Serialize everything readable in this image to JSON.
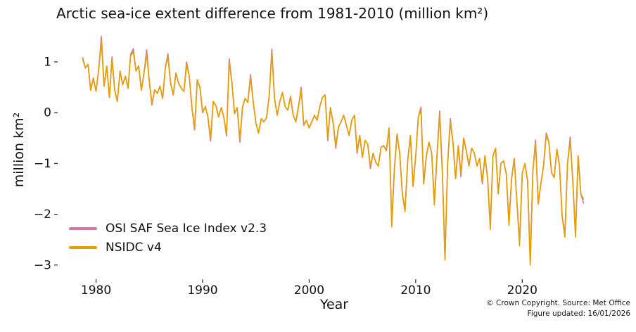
{
  "footer": {
    "line1": "© Crown Copyright. Source: Met Office",
    "line2": "Figure updated: 16/01/2026"
  },
  "chart_data": {
    "type": "line",
    "title": "Arctic sea-ice extent difference from 1981-2010 (million km²)",
    "xlabel": "Year",
    "ylabel": "million km²",
    "xlim": [
      1976.4,
      2028.3
    ],
    "ylim": [
      -3.28,
      1.72
    ],
    "xticks": [
      1980,
      1990,
      2000,
      2010,
      2020
    ],
    "yticks": [
      1,
      0,
      -1,
      -2,
      -3
    ],
    "grid": false,
    "legend_position": "lower-left",
    "x_start": 1978.75,
    "x_step": 0.25,
    "series": [
      {
        "name": "OSI SAF Sea Ice Index v2.3",
        "color": "#CC79A7",
        "values": [
          1.08,
          0.88,
          0.95,
          0.44,
          0.68,
          0.42,
          0.85,
          1.5,
          0.52,
          0.92,
          0.3,
          1.1,
          0.45,
          0.22,
          0.82,
          0.55,
          0.72,
          0.48,
          1.15,
          1.26,
          0.82,
          0.92,
          0.44,
          0.78,
          1.24,
          0.62,
          0.15,
          0.45,
          0.38,
          0.52,
          0.28,
          0.88,
          1.16,
          0.58,
          0.35,
          0.78,
          0.58,
          0.48,
          0.42,
          1.0,
          0.72,
          0.1,
          -0.34,
          0.65,
          0.5,
          0.0,
          0.12,
          -0.08,
          -0.56,
          0.22,
          0.14,
          -0.08,
          0.1,
          -0.1,
          -0.46,
          1.06,
          0.6,
          -0.02,
          0.1,
          -0.58,
          0.12,
          0.28,
          0.2,
          0.75,
          0.22,
          -0.2,
          -0.4,
          -0.12,
          -0.18,
          -0.1,
          0.32,
          1.25,
          0.28,
          -0.05,
          0.22,
          0.4,
          0.12,
          0.05,
          0.32,
          -0.05,
          -0.18,
          0.12,
          0.5,
          -0.25,
          -0.15,
          -0.3,
          -0.18,
          -0.05,
          -0.15,
          0.12,
          0.3,
          0.35,
          -0.55,
          0.1,
          -0.2,
          -0.7,
          -0.28,
          -0.18,
          -0.05,
          -0.25,
          -0.45,
          -0.15,
          -0.05,
          -0.8,
          -0.45,
          -0.88,
          -0.55,
          -0.62,
          -1.1,
          -0.8,
          -0.98,
          -1.05,
          -0.68,
          -0.65,
          -0.75,
          -0.3,
          -2.18,
          -1.1,
          -0.42,
          -0.8,
          -1.6,
          -1.9,
          -0.95,
          -0.45,
          -1.45,
          -0.85,
          -0.08,
          0.11,
          -1.4,
          -0.85,
          -0.58,
          -0.8,
          -1.76,
          -0.85,
          0.03,
          -1.15,
          -2.84,
          -1.0,
          -0.12,
          -0.6,
          -1.3,
          -0.65,
          -1.26,
          -0.5,
          -0.75,
          -1.05,
          -0.7,
          -0.8,
          -1.05,
          -0.9,
          -1.4,
          -0.85,
          -1.3,
          -2.22,
          -0.85,
          -0.7,
          -1.6,
          -1.0,
          -0.95,
          -1.2,
          -2.16,
          -1.3,
          -0.9,
          -1.75,
          -2.55,
          -1.2,
          -1.0,
          -1.35,
          -2.94,
          -1.15,
          -0.54,
          -1.8,
          -1.4,
          -1.05,
          -0.4,
          -0.58,
          -1.18,
          -1.28,
          -0.72,
          -1.05,
          -2.05,
          -2.38,
          -1.0,
          -0.48,
          -1.35,
          -2.38,
          -0.85,
          -1.6,
          -1.78
        ]
      },
      {
        "name": "NSIDC v4",
        "color": "#E69F00",
        "values": [
          1.05,
          0.88,
          0.95,
          0.44,
          0.68,
          0.42,
          0.85,
          1.4,
          0.52,
          0.92,
          0.3,
          1.05,
          0.45,
          0.22,
          0.82,
          0.55,
          0.72,
          0.48,
          1.12,
          1.2,
          0.82,
          0.92,
          0.44,
          0.78,
          1.15,
          0.62,
          0.18,
          0.45,
          0.38,
          0.52,
          0.28,
          0.88,
          1.1,
          0.58,
          0.35,
          0.78,
          0.58,
          0.48,
          0.42,
          0.94,
          0.72,
          0.1,
          -0.3,
          0.65,
          0.5,
          0.0,
          0.12,
          -0.08,
          -0.5,
          0.22,
          0.14,
          -0.08,
          0.1,
          -0.1,
          -0.42,
          1.0,
          0.6,
          -0.02,
          0.1,
          -0.52,
          0.12,
          0.28,
          0.2,
          0.7,
          0.22,
          -0.2,
          -0.4,
          -0.12,
          -0.18,
          -0.1,
          0.32,
          1.18,
          0.28,
          -0.05,
          0.22,
          0.4,
          0.12,
          0.05,
          0.32,
          -0.05,
          -0.18,
          0.12,
          0.45,
          -0.25,
          -0.15,
          -0.3,
          -0.18,
          -0.05,
          -0.15,
          0.12,
          0.3,
          0.35,
          -0.5,
          0.1,
          -0.2,
          -0.65,
          -0.28,
          -0.18,
          -0.05,
          -0.25,
          -0.45,
          -0.15,
          -0.05,
          -0.75,
          -0.45,
          -0.88,
          -0.55,
          -0.62,
          -1.05,
          -0.8,
          -0.98,
          -1.05,
          -0.68,
          -0.65,
          -0.75,
          -0.3,
          -2.25,
          -1.1,
          -0.42,
          -0.8,
          -1.6,
          -1.95,
          -0.95,
          -0.45,
          -1.45,
          -0.85,
          -0.08,
          0.05,
          -1.4,
          -0.85,
          -0.58,
          -0.8,
          -1.82,
          -0.85,
          -0.05,
          -1.15,
          -2.9,
          -1.0,
          -0.18,
          -0.6,
          -1.3,
          -0.65,
          -1.2,
          -0.5,
          -0.75,
          -1.05,
          -0.7,
          -0.8,
          -1.05,
          -0.9,
          -1.35,
          -0.85,
          -1.3,
          -2.3,
          -0.85,
          -0.7,
          -1.6,
          -1.0,
          -0.95,
          -1.2,
          -2.22,
          -1.3,
          -0.9,
          -1.75,
          -2.62,
          -1.2,
          -1.0,
          -1.35,
          -3.0,
          -1.15,
          -0.6,
          -1.8,
          -1.4,
          -1.05,
          -0.45,
          -0.58,
          -1.18,
          -1.28,
          -0.72,
          -1.05,
          -2.05,
          -2.45,
          -1.0,
          -0.55,
          -1.35,
          -2.45,
          -0.85,
          -1.6,
          -1.7
        ]
      }
    ]
  }
}
